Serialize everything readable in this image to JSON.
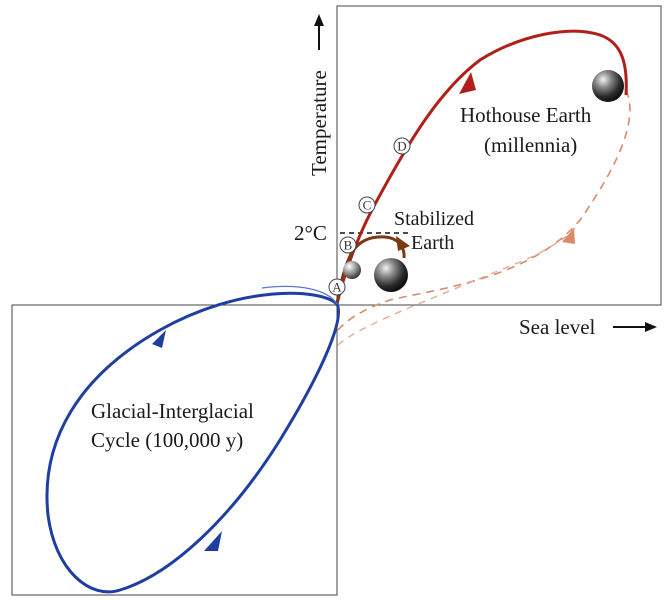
{
  "axes": {
    "y_label": "Temperature",
    "x_label": "Sea level",
    "threshold_label": "2°C"
  },
  "regions": {
    "hothouse_title": "Hothouse Earth",
    "hothouse_subtitle": "(millennia)",
    "stabilized_line1": "Stabilized",
    "stabilized_line2": "Earth",
    "glacial_line1": "Glacial-Interglacial",
    "glacial_line2": "Cycle (100,000 y)"
  },
  "markers": [
    "A",
    "B",
    "C",
    "D"
  ],
  "colors": {
    "hothouse_path": "#b0201a",
    "dashed_path": "#d98a6a",
    "stabilized_path": "#7a3a12",
    "glacial_path": "#1f3fa0",
    "frame": "#444444"
  }
}
